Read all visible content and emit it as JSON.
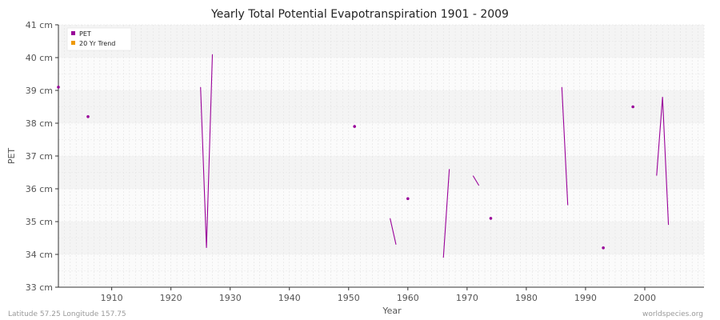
{
  "chart_data": {
    "type": "line",
    "title": "Yearly Total Potential Evapotranspiration 1901 - 2009",
    "xlabel": "Year",
    "ylabel": "PET",
    "xlim": [
      1901,
      2010
    ],
    "ylim": [
      33,
      41
    ],
    "x_ticks": [
      1910,
      1920,
      1930,
      1940,
      1950,
      1960,
      1970,
      1980,
      1990,
      2000
    ],
    "x_tick_labels": [
      "1910",
      "1920",
      "1930",
      "1940",
      "1950",
      "1960",
      "1970",
      "1980",
      "1990",
      "2000"
    ],
    "y_ticks": [
      33,
      34,
      35,
      36,
      37,
      38,
      39,
      40,
      41
    ],
    "y_tick_labels": [
      "33 cm",
      "34 cm",
      "35 cm",
      "36 cm",
      "37 cm",
      "38 cm",
      "39 cm",
      "40 cm",
      "41 cm"
    ],
    "legend_position": "top-left",
    "grid": true,
    "series": [
      {
        "name": "PET",
        "color": "#990099",
        "points": [
          [
            1901,
            39.1
          ],
          [
            1906,
            38.2
          ],
          [
            1925,
            39.1
          ],
          [
            1926,
            34.2
          ],
          [
            1927,
            40.1
          ],
          [
            1951,
            37.9
          ],
          [
            1957,
            35.1
          ],
          [
            1958,
            34.3
          ],
          [
            1960,
            35.7
          ],
          [
            1966,
            33.9
          ],
          [
            1967,
            36.6
          ],
          [
            1971,
            36.4
          ],
          [
            1972,
            36.1
          ],
          [
            1974,
            35.1
          ],
          [
            1986,
            39.1
          ],
          [
            1987,
            35.5
          ],
          [
            1993,
            34.2
          ],
          [
            1998,
            38.5
          ],
          [
            2002,
            36.4
          ],
          [
            2003,
            38.8
          ],
          [
            2004,
            34.9
          ]
        ]
      },
      {
        "name": "20 Yr Trend",
        "color": "#ee9900",
        "points": []
      }
    ]
  },
  "footer": {
    "left": "Latitude 57.25 Longitude 157.75",
    "right": "worldspecies.org"
  }
}
